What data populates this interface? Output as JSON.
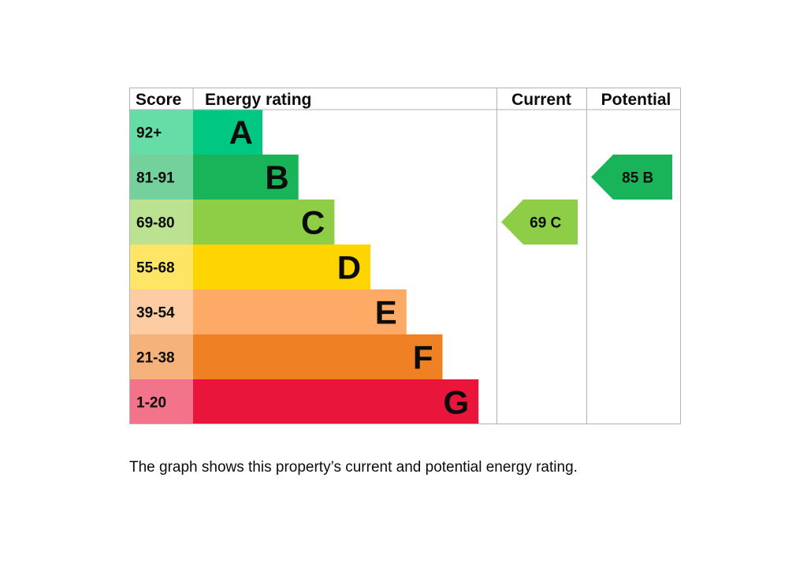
{
  "chart_data": {
    "type": "table",
    "headers": {
      "score": "Score",
      "rating": "Energy rating",
      "current": "Current",
      "potential": "Potential"
    },
    "bands": [
      {
        "letter": "A",
        "score_range": "92+",
        "min": 92,
        "color": "#00c781",
        "score_color": "#66dda6"
      },
      {
        "letter": "B",
        "score_range": "81-91",
        "min": 81,
        "color": "#19b459",
        "score_color": "#75d19b"
      },
      {
        "letter": "C",
        "score_range": "69-80",
        "min": 69,
        "color": "#8dce46",
        "score_color": "#bbe290"
      },
      {
        "letter": "D",
        "score_range": "55-68",
        "min": 55,
        "color": "#ffd500",
        "score_color": "#ffe566"
      },
      {
        "letter": "E",
        "score_range": "39-54",
        "min": 39,
        "color": "#fcaa65",
        "score_color": "#fdcca3"
      },
      {
        "letter": "F",
        "score_range": "21-38",
        "min": 21,
        "color": "#ef8023",
        "score_color": "#f5b37b"
      },
      {
        "letter": "G",
        "score_range": "1-20",
        "min": 1,
        "color": "#e9153b",
        "score_color": "#f2738a"
      }
    ],
    "current": {
      "value": 69,
      "band": "C",
      "label": "69  C",
      "color": "#8dce46"
    },
    "potential": {
      "value": 85,
      "band": "B",
      "label": "85  B",
      "color": "#19b459"
    }
  },
  "caption": "The graph shows this property’s current and potential energy rating."
}
